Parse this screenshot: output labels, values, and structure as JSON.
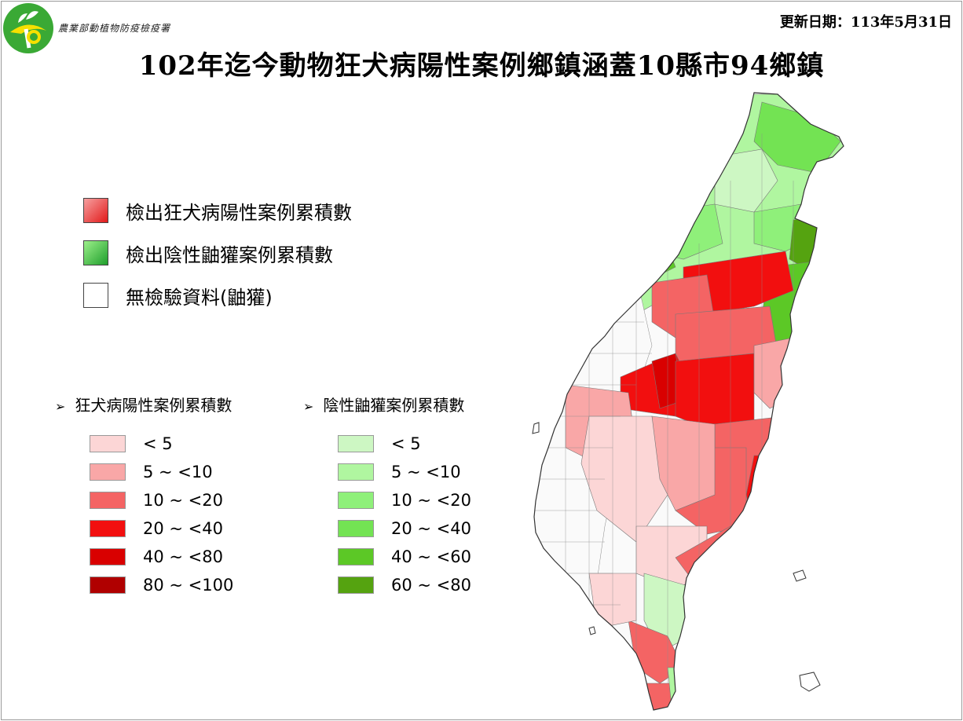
{
  "header": {
    "agency": "農業部動植物防疫檢疫署",
    "update_date": "更新日期：113年5月31日",
    "title": "102年迄今動物狂犬病陽性案例鄉鎮涵蓋10縣市94鄉鎮"
  },
  "main_legend": [
    {
      "label": "檢出狂犬病陽性案例累積數",
      "color": "#f26d6d"
    },
    {
      "label": "檢出陰性鼬獾案例累積數",
      "color": "#4fbf4f"
    },
    {
      "label": "無檢驗資料(鼬獾)",
      "color": "#ffffff"
    }
  ],
  "positive_scale": {
    "heading": "狂犬病陽性案例累積數",
    "items": [
      {
        "label": "< 5",
        "color": "#fcd6d6"
      },
      {
        "label": "5 ~ <10",
        "color": "#f9a7a7"
      },
      {
        "label": "10 ~ <20",
        "color": "#f46464"
      },
      {
        "label": "20 ~ <40",
        "color": "#f20f0f"
      },
      {
        "label": "40 ~ <80",
        "color": "#d90000"
      },
      {
        "label": "80 ~ <100",
        "color": "#b00000"
      }
    ]
  },
  "negative_scale": {
    "heading": "陰性鼬獾案例累積數",
    "items": [
      {
        "label": "< 5",
        "color": "#cdf7c3"
      },
      {
        "label": "5 ~ <10",
        "color": "#b0f6a0"
      },
      {
        "label": "10 ~ <20",
        "color": "#8ff07a"
      },
      {
        "label": "20 ~ <40",
        "color": "#73e353"
      },
      {
        "label": "40 ~ <60",
        "color": "#5cc826"
      },
      {
        "label": "60 ~ <80",
        "color": "#55a310"
      }
    ]
  }
}
